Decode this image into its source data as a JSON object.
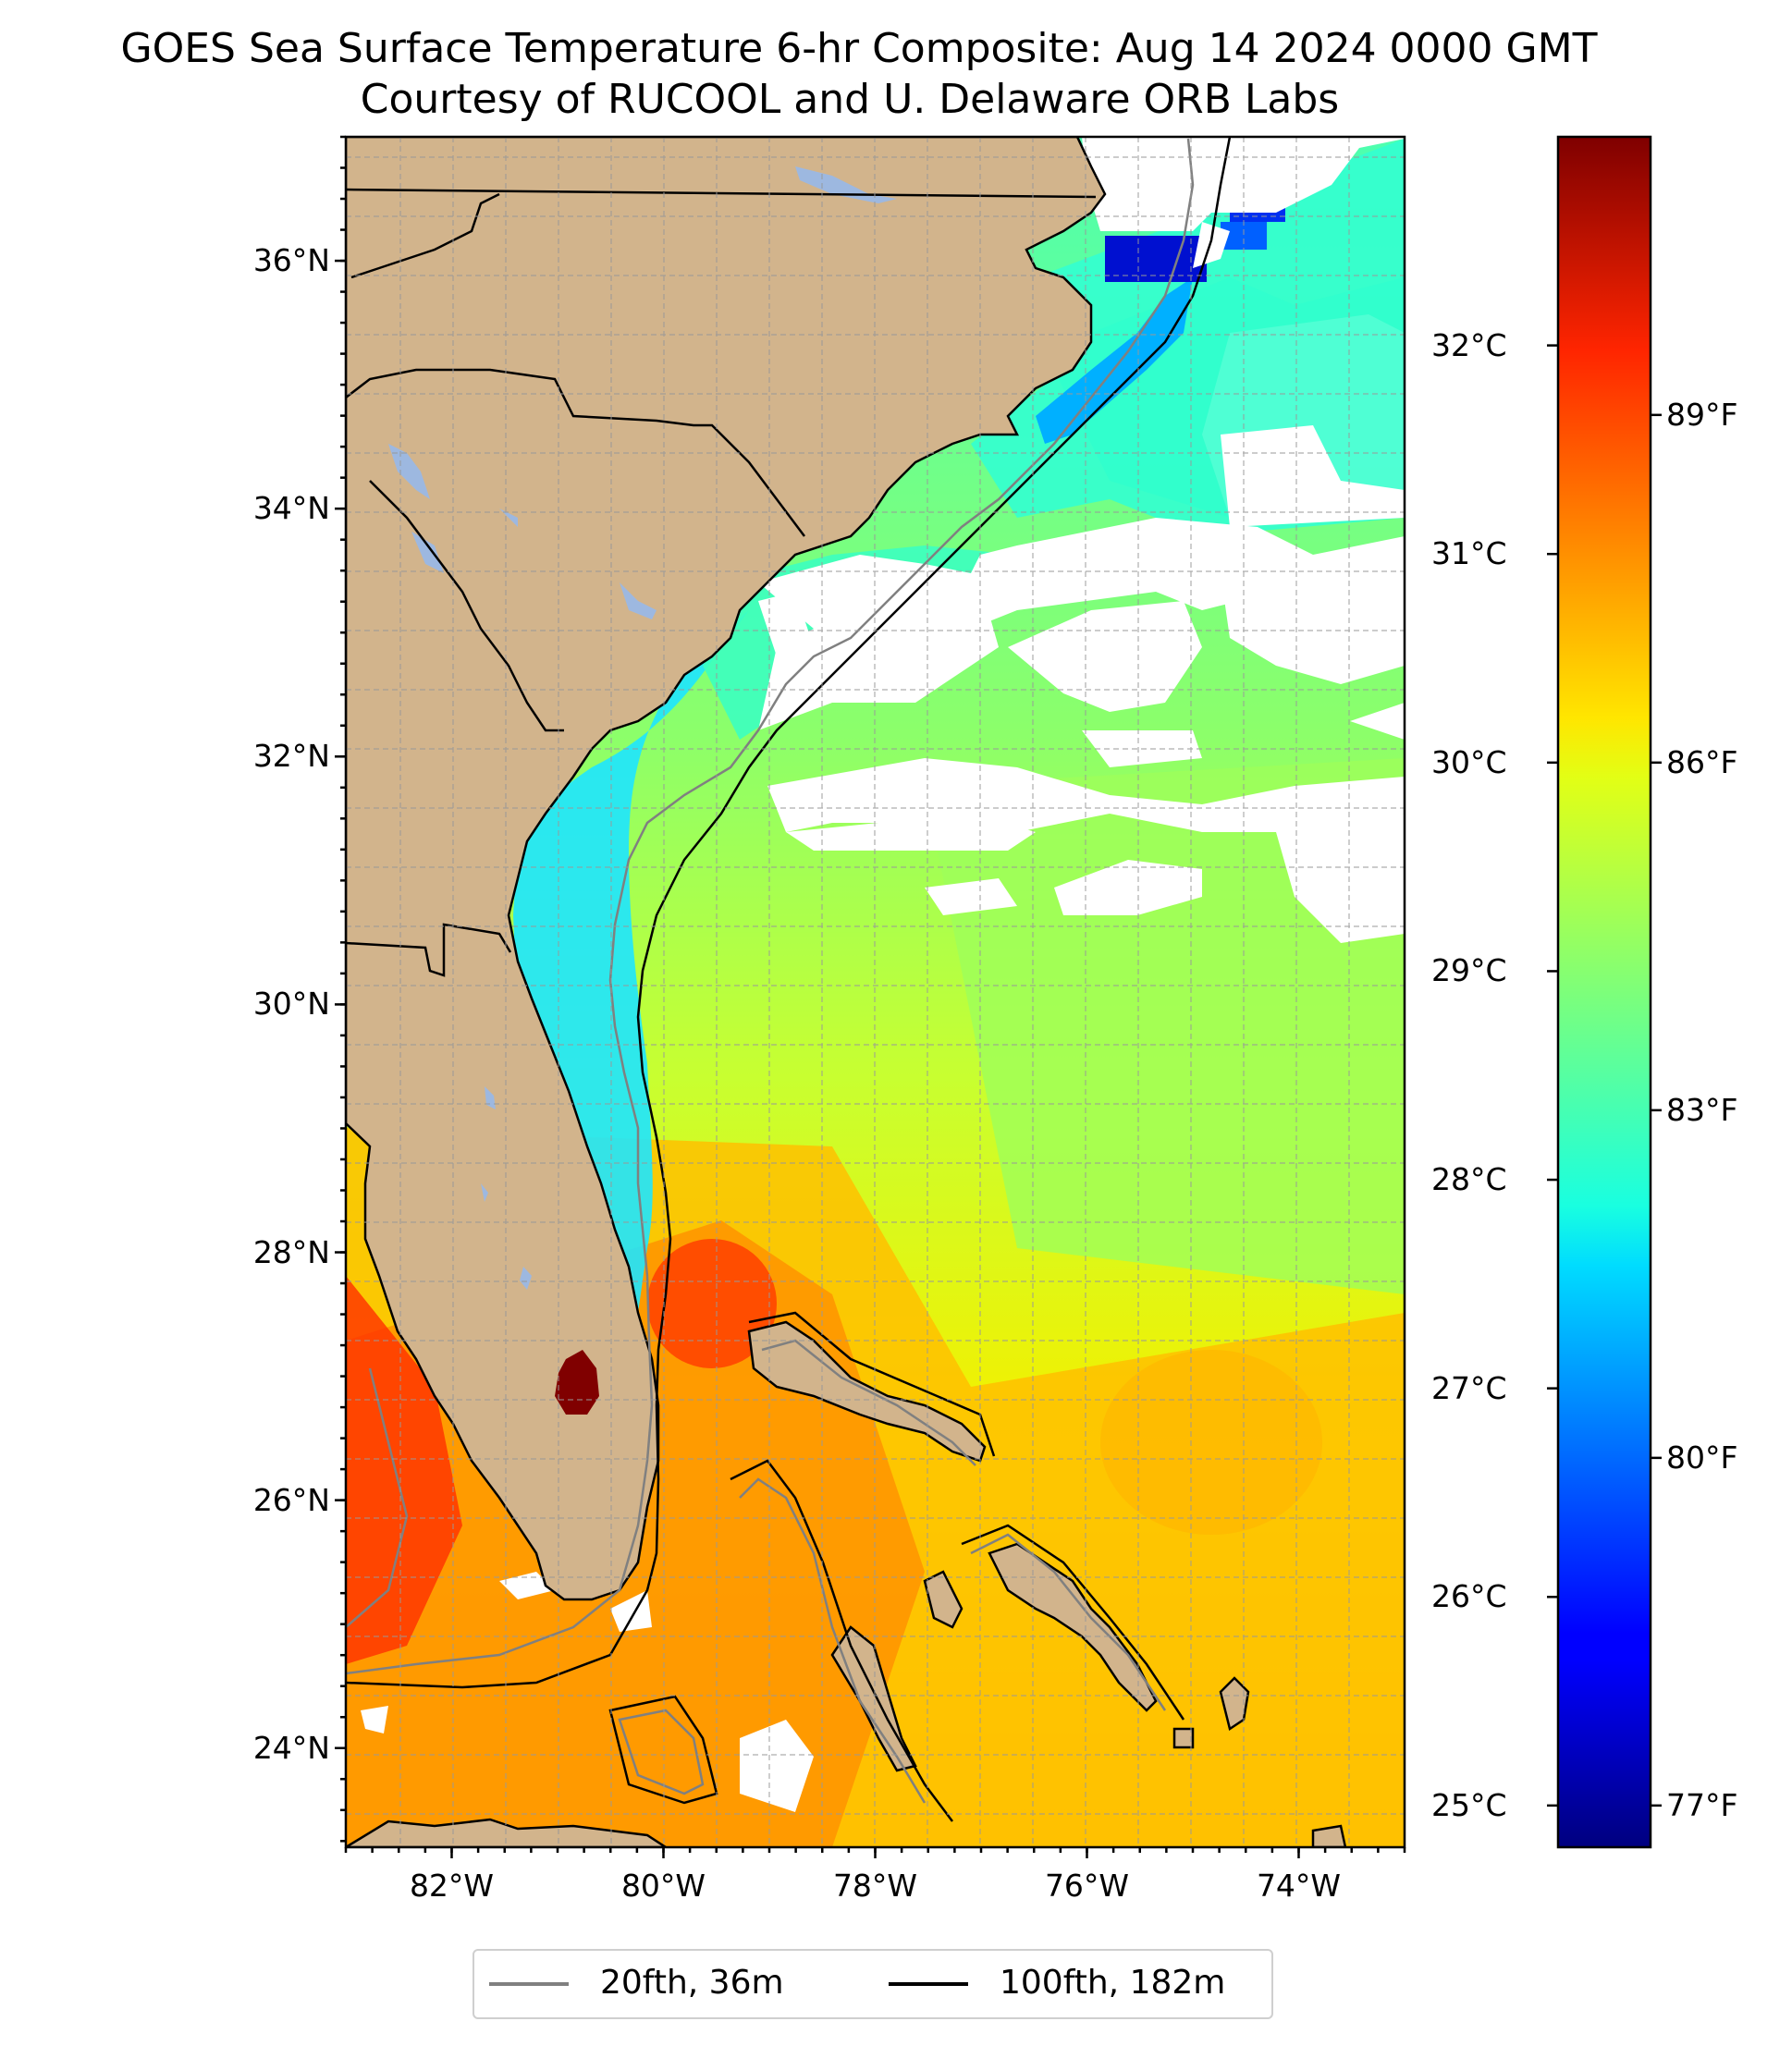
{
  "title": {
    "line1": "GOES Sea Surface Temperature 6-hr Composite: Aug 14 2024 0000 GMT",
    "line2": "Courtesy of RUCOOL and U. Delaware ORB Labs"
  },
  "map": {
    "lon_range": [
      -83.0,
      -73.0
    ],
    "lat_range": [
      23.2,
      37.0
    ],
    "lat_ticks": [
      {
        "value": 24,
        "label": "24°N"
      },
      {
        "value": 26,
        "label": "26°N"
      },
      {
        "value": 28,
        "label": "28°N"
      },
      {
        "value": 30,
        "label": "30°N"
      },
      {
        "value": 32,
        "label": "32°N"
      },
      {
        "value": 34,
        "label": "34°N"
      },
      {
        "value": 36,
        "label": "36°N"
      }
    ],
    "lon_ticks": [
      {
        "value": -82,
        "label": "82°W"
      },
      {
        "value": -80,
        "label": "80°W"
      },
      {
        "value": -78,
        "label": "78°W"
      },
      {
        "value": -76,
        "label": "76°W"
      },
      {
        "value": -74,
        "label": "74°W"
      }
    ],
    "grid": true,
    "colors": {
      "land": "#d2b48c",
      "lakes": "#9db8e0",
      "clouds": "#ffffff",
      "isobath_20fth": "#808080",
      "isobath_100fth": "#000000"
    }
  },
  "colorbar": {
    "colormap": "jet",
    "celsius_range": [
      24.8,
      33.0
    ],
    "celsius_ticks": [
      {
        "value": 25,
        "label": "25°C"
      },
      {
        "value": 26,
        "label": "26°C"
      },
      {
        "value": 27,
        "label": "27°C"
      },
      {
        "value": 28,
        "label": "28°C"
      },
      {
        "value": 29,
        "label": "29°C"
      },
      {
        "value": 30,
        "label": "30°C"
      },
      {
        "value": 31,
        "label": "31°C"
      },
      {
        "value": 32,
        "label": "32°C"
      }
    ],
    "fahrenheit_ticks": [
      {
        "value": 77,
        "label": "77°F"
      },
      {
        "value": 80,
        "label": "80°F"
      },
      {
        "value": 83,
        "label": "83°F"
      },
      {
        "value": 86,
        "label": "86°F"
      },
      {
        "value": 89,
        "label": "89°F"
      }
    ]
  },
  "legend": {
    "placement": "bottom-center",
    "entries": [
      {
        "label": "20fth, 36m",
        "color": "#808080"
      },
      {
        "label": "100fth, 182m",
        "color": "#000000"
      }
    ]
  }
}
